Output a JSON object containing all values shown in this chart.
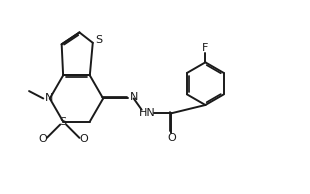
{
  "bg_color": "#ffffff",
  "line_color": "#1a1a1a",
  "line_width": 1.4,
  "figsize": [
    3.1,
    1.94
  ],
  "dpi": 100,
  "xlim": [
    0,
    10
  ],
  "ylim": [
    0,
    6.5
  ]
}
